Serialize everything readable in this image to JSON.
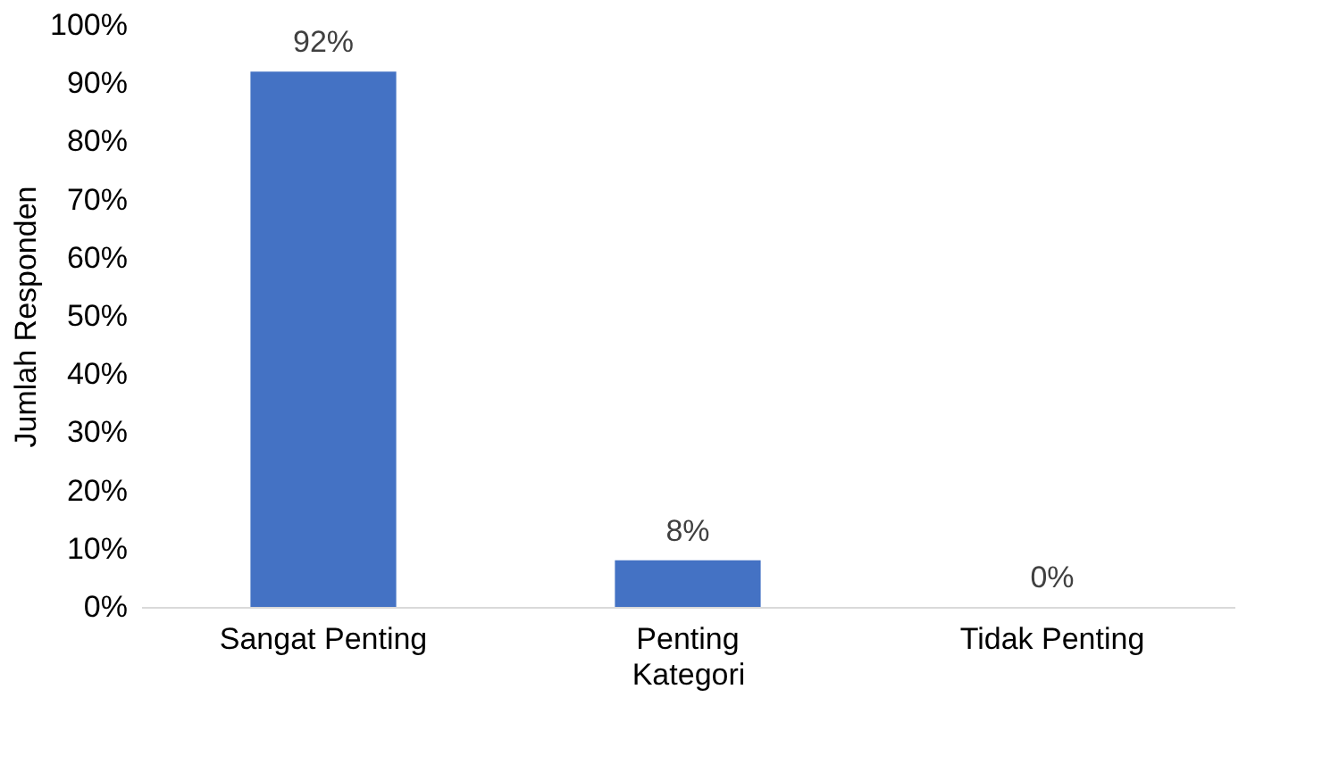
{
  "chart_data": {
    "type": "bar",
    "xlabel": "Kategori",
    "ylabel": "Jumlah Responden",
    "categories": [
      "Sangat Penting",
      "Penting",
      "Tidak Penting"
    ],
    "values": [
      92,
      8,
      0
    ],
    "color": "#4472c4",
    "value_labels": [
      "92%",
      "8%",
      "0%"
    ],
    "ylim": [
      0,
      100
    ],
    "yticks": [
      {
        "value": 0,
        "label": "0%"
      },
      {
        "value": 10,
        "label": "10%"
      },
      {
        "value": 20,
        "label": "20%"
      },
      {
        "value": 30,
        "label": "30%"
      },
      {
        "value": 40,
        "label": "40%"
      },
      {
        "value": 50,
        "label": "50%"
      },
      {
        "value": 60,
        "label": "60%"
      },
      {
        "value": 70,
        "label": "70%"
      },
      {
        "value": 80,
        "label": "80%"
      },
      {
        "value": 90,
        "label": "90%"
      },
      {
        "value": 100,
        "label": "100%"
      }
    ],
    "grid": false
  }
}
